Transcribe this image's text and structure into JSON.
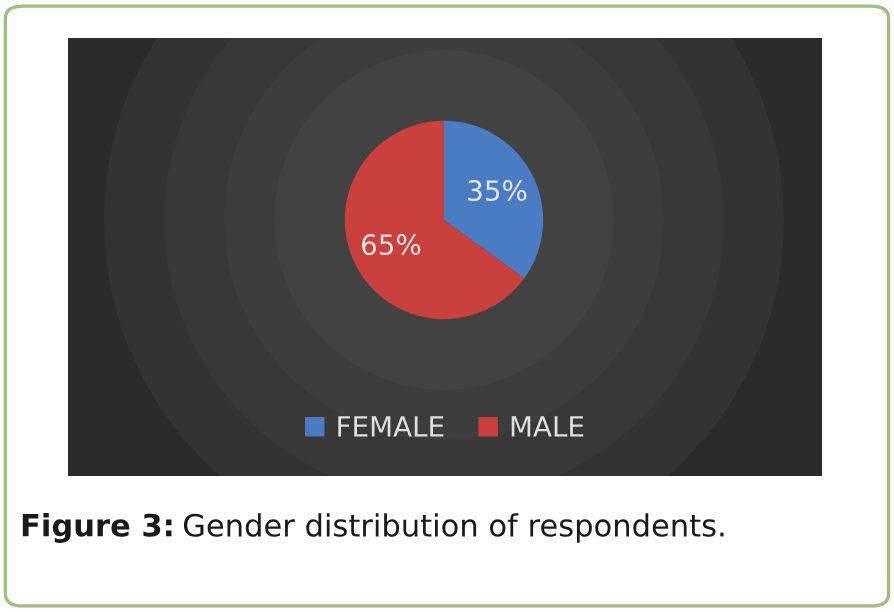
{
  "chart_data": {
    "type": "pie",
    "categories": [
      "FEMALE",
      "MALE"
    ],
    "values": [
      35,
      65
    ],
    "colors": [
      "#4a7cc4",
      "#c9403d"
    ],
    "value_labels": [
      "35%",
      "65%"
    ],
    "legend": "bottom",
    "annotations": [
      "Figure 3:",
      "Gender distribution of respondents."
    ]
  }
}
